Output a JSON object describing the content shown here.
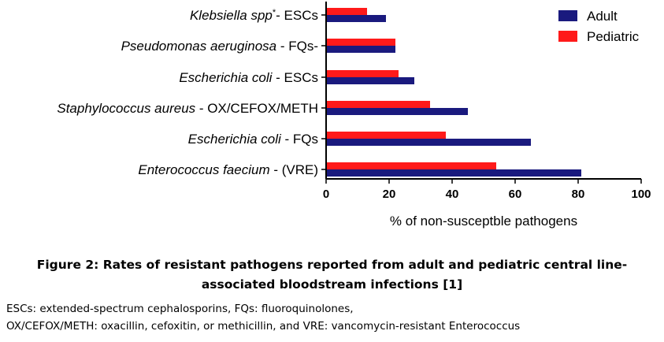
{
  "chart_data": {
    "type": "bar",
    "orientation": "horizontal",
    "categories": [
      {
        "italic": "Klebsiella spp",
        "sup": "*",
        "suffix": "- ESCs"
      },
      {
        "italic": "Pseudomonas aeruginosa",
        "sup": "",
        "suffix": " - FQs-"
      },
      {
        "italic": "Escherichia coli",
        "sup": "",
        "suffix": " - ESCs"
      },
      {
        "italic": "Staphylococcus aureus",
        "sup": "",
        "suffix": " - OX/CEFOX/METH"
      },
      {
        "italic": "Escherichia coli",
        "sup": "",
        "suffix": " - FQs"
      },
      {
        "italic": "Enterococcus faecium",
        "sup": "",
        "suffix": " - (VRE)"
      }
    ],
    "series": [
      {
        "name": "Adult",
        "color": "#1a1a7e",
        "values": [
          19,
          22,
          28,
          45,
          65,
          81
        ]
      },
      {
        "name": "Pediatric",
        "color": "#ff1a1a",
        "values": [
          13,
          22,
          23,
          33,
          38,
          54
        ]
      }
    ],
    "xlabel": "% of non-susceptble pathogens",
    "xlim": [
      0,
      100
    ],
    "xticks": [
      0,
      20,
      40,
      60,
      80,
      100
    ],
    "legend_position": "top-right",
    "grid": false
  },
  "caption": {
    "title_line1": "Figure 2: Rates of resistant pathogens reported from adult and pediatric central line-",
    "title_line2": "associated bloodstream infections [1]",
    "note_line1": "ESCs: extended-spectrum cephalosporins, FQs: fluoroquinolones,",
    "note_line2": "OX/CEFOX/METH: oxacillin, cefoxitin, or methicillin, and VRE: vancomycin-resistant Enterococcus"
  }
}
